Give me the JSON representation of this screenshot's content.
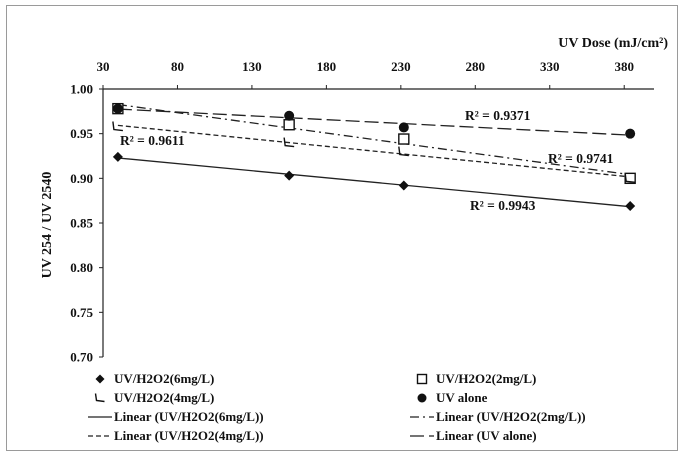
{
  "chart_data": {
    "type": "scatter",
    "xlabel": "UV Dose (mJ/cm²)",
    "ylabel": "UV 254 / UV 2540",
    "xlim": [
      30,
      400
    ],
    "ylim": [
      0.7,
      1.0
    ],
    "x_ticks": [
      "30",
      "80",
      "130",
      "180",
      "230",
      "280",
      "330",
      "380"
    ],
    "y_ticks": [
      "0.70",
      "0.75",
      "0.80",
      "0.85",
      "0.90",
      "0.95",
      "1.00"
    ],
    "x_axis_position": "top",
    "grid": false,
    "legend_position": "bottom",
    "series": [
      {
        "name": "UV/H2O2(6mg/L)",
        "marker": "diamond",
        "x": [
          40,
          155,
          232,
          384
        ],
        "y": [
          0.924,
          0.903,
          0.892,
          0.869
        ],
        "trend_name": "Linear (UV/H2O2(6mg/L))",
        "trend_style": "solid",
        "r2": "R² = 0.9943"
      },
      {
        "name": "UV/H2O2(2mg/L)",
        "marker": "open-square",
        "x": [
          40,
          155,
          232,
          384
        ],
        "y": [
          0.978,
          0.96,
          0.944,
          0.9
        ],
        "trend_name": "Linear (UV/H2O2(2mg/L))",
        "trend_style": "dash-dot",
        "r2": "R² = 0.9741"
      },
      {
        "name": "UV/H2O2(4mg/L)",
        "marker": "open-triangle",
        "x": [
          40,
          155,
          232,
          384
        ],
        "y": [
          0.958,
          0.94,
          0.93,
          0.9
        ],
        "trend_name": "Linear (UV/H2O2(4mg/L))",
        "trend_style": "short-dash",
        "r2": "R² = 0.9611"
      },
      {
        "name": "UV alone",
        "marker": "filled-circle",
        "x": [
          40,
          155,
          232,
          384
        ],
        "y": [
          0.978,
          0.97,
          0.957,
          0.95
        ],
        "trend_name": "Linear (UV alone)",
        "trend_style": "long-dash",
        "r2": "R² = 0.9371"
      }
    ]
  }
}
